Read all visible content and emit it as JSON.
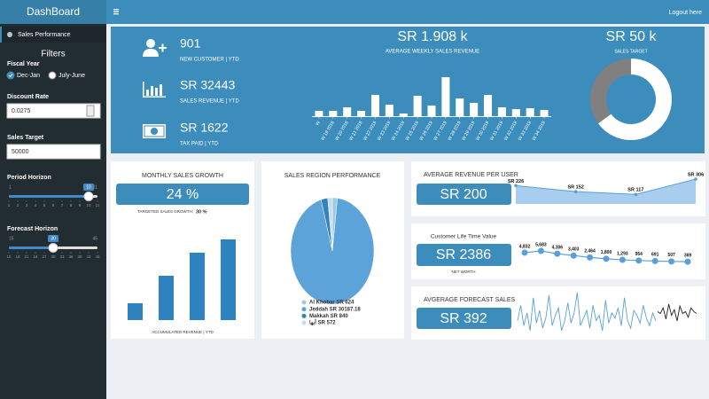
{
  "header": {
    "brand": "DashBoard",
    "logout": "Logout here"
  },
  "sidebar": {
    "menu": "Sales Performance",
    "filters": "Filters",
    "fiscal_year": {
      "label": "Fiscal Year",
      "options": [
        "Dec-Jan",
        "July-June"
      ],
      "selected": 0
    },
    "discount_rate": {
      "label": "Discount Rate",
      "value": "0.0275"
    },
    "sales_target": {
      "label": "Sales Target",
      "value": "50000"
    },
    "period_horizon": {
      "label": "Period Horizon",
      "min": 1,
      "max": 11,
      "value": 10,
      "ticks": [
        1,
        2,
        3,
        4,
        5,
        6,
        7,
        8,
        9,
        10,
        11
      ]
    },
    "forecast_horizon": {
      "label": "Forecast Horizon",
      "min": 15,
      "max": 45,
      "value": 30,
      "ticks": [
        15,
        18,
        21,
        24,
        27,
        30,
        33,
        36,
        39,
        42,
        45
      ]
    }
  },
  "kpis": [
    {
      "value": "901",
      "label": "NEW CUSTOMER | YTD"
    },
    {
      "value": "SR 32443",
      "label": "SALES REVENUE | YTD"
    },
    {
      "value": "SR 1622",
      "label": "TAX PAID | YTD"
    }
  ],
  "weekly": {
    "value": "SR 1.908 k",
    "title": "AVERAGE WEEKLY SALES REVENUE",
    "chart": {
      "type": "bar",
      "color": "#ffffff",
      "categories": [
        "W",
        "W 19 2019",
        "W 20 2019",
        "W 21 2019",
        "W 22 2019",
        "W 23 2019",
        "W 24 2019",
        "W 25 2019",
        "W 26 2019",
        "W 27 2019",
        "W 28 2019",
        "W 29 2019",
        "W 30 2019",
        "W 31 2019",
        "W 32 2019",
        "W 33 2019",
        "W 34 2019"
      ],
      "values": [
        6,
        6,
        10,
        6,
        24,
        13,
        3,
        23,
        12,
        44,
        20,
        15,
        24,
        10,
        8,
        9,
        7
      ]
    }
  },
  "target": {
    "value": "SR 50 k",
    "title": "SALES TARGET",
    "chart": {
      "type": "donut",
      "values": [
        32443,
        17557
      ],
      "colors": [
        "#ffffff",
        "#808080"
      ]
    }
  },
  "monthly_growth": {
    "title": "MONTHLY SALES GROWTH",
    "value": "24 %",
    "target_label": "TARGETED SALES GROWTH:",
    "target_value": "30 %",
    "chart": {
      "type": "bar",
      "color": "#2f82c0",
      "values": [
        19,
        50,
        76,
        91
      ]
    },
    "caption": "ACCUMULATED REVENUE | YTD"
  },
  "regions": {
    "title": "SALES REGION PERFORMANCE",
    "chart": {
      "type": "pie",
      "labels": [
        "Al Khobar SR 624",
        "Jeddah SR 30187.18",
        "Makkah SR 840",
        "أبها SR 572"
      ],
      "values": [
        624,
        30187.18,
        840,
        572
      ],
      "colors": [
        "#9ecae1",
        "#5ba3d9",
        "#3182bd",
        "#c6dbef"
      ]
    }
  },
  "arpu": {
    "title": "AVERAGE REVENUE PER USER",
    "value": "SR 200",
    "chart": {
      "type": "area",
      "color": "#5a9fd8",
      "values": [
        226,
        152,
        117,
        306
      ],
      "value_labels": [
        "SR 226",
        "SR 152",
        "SR 117",
        "SR 306"
      ]
    }
  },
  "clv": {
    "title": "Customer Life Time Value",
    "value": "SR 2386",
    "caption": "NET WORTH",
    "chart": {
      "type": "line",
      "color": "#5a9fd8",
      "values": [
        4832,
        5683,
        4306,
        3403,
        2464,
        1800,
        1293,
        954,
        691,
        507,
        369
      ],
      "value_labels": [
        "4,832",
        "5,683",
        "4,306",
        "3,403",
        "2,464",
        "1,800",
        "1,293",
        "954",
        "691",
        "507",
        "369"
      ]
    }
  },
  "forecast": {
    "title": "AVGERAGE FORECAST SALES",
    "value": "SR 392",
    "chart": {
      "type": "line",
      "series": [
        {
          "color": "#5a9fd8",
          "values": [
            40,
            70,
            30,
            55,
            20,
            85,
            35,
            60,
            25,
            45,
            90,
            30,
            50,
            65,
            20,
            40,
            75,
            35,
            55,
            95,
            30,
            45,
            60,
            25,
            70,
            40,
            50,
            20,
            80,
            35,
            55,
            45,
            65,
            30,
            85,
            40,
            25,
            60,
            50,
            35,
            70,
            45,
            30,
            55,
            40
          ]
        },
        {
          "color": "#222222",
          "values": [
            50,
            45,
            60,
            30,
            70,
            40,
            55,
            25,
            65,
            45,
            50,
            35,
            60,
            50,
            45
          ]
        }
      ]
    }
  }
}
